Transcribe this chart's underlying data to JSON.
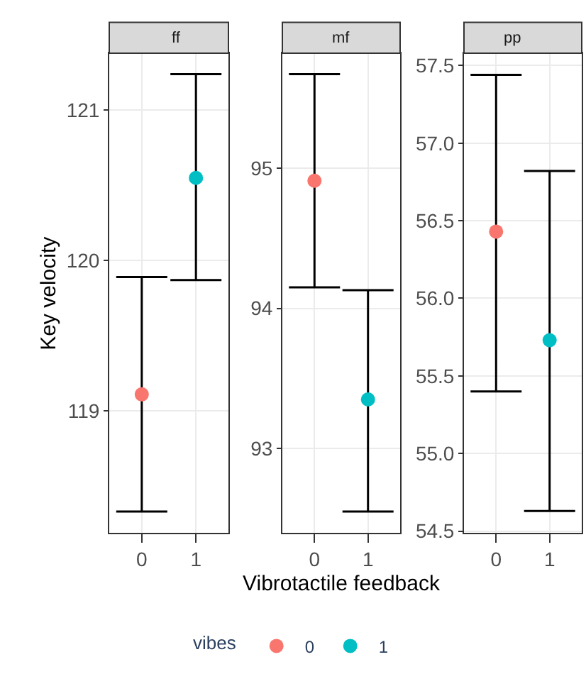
{
  "chart_data": [
    {
      "type": "scatter",
      "title": "ff",
      "ylabel": "Key velocity",
      "legend_title": "vibes",
      "legend": "bottom",
      "categories": [
        "0",
        "1"
      ],
      "ylim": [
        118.19,
        121.38
      ],
      "yticks": [
        119,
        120,
        121
      ],
      "grid": true,
      "marker": "circle",
      "series": [
        {
          "name": "0",
          "color": "#f8766d",
          "values": [
            119.11,
            null
          ],
          "errors": [
            [
              118.33,
              119.89
            ],
            null
          ]
        },
        {
          "name": "1",
          "color": "#00bfc4",
          "values": [
            null,
            120.55
          ],
          "errors": [
            null,
            [
              119.87,
              121.24
            ]
          ]
        }
      ]
    },
    {
      "type": "scatter",
      "title": "mf",
      "xlabel": "Vibrotactile feedback",
      "categories": [
        "0",
        "1"
      ],
      "ylim": [
        92.4,
        95.82
      ],
      "yticks": [
        93,
        94,
        95
      ],
      "grid": true,
      "marker": "circle",
      "series": [
        {
          "color": "#f8766d",
          "values": [
            94.91,
            null
          ],
          "errors": [
            [
              94.15,
              95.67
            ],
            null
          ]
        },
        {
          "color": "#00bfc4",
          "values": [
            null,
            93.35
          ],
          "errors": [
            null,
            [
              92.55,
              94.13
            ]
          ]
        }
      ]
    },
    {
      "type": "scatter",
      "title": "pp",
      "categories": [
        "0",
        "1"
      ],
      "ylim": [
        54.49,
        57.58
      ],
      "yticks": [
        {
          "value": 54.5,
          "label": "54.5"
        },
        {
          "value": 55,
          "label": "55.0"
        },
        {
          "value": 55.5,
          "label": "55.5"
        },
        {
          "value": 56,
          "label": "56.0"
        },
        {
          "value": 56.5,
          "label": "56.5"
        },
        {
          "value": 57,
          "label": "57.0"
        },
        {
          "value": 57.5,
          "label": "57.5"
        }
      ],
      "grid": true,
      "marker": "circle",
      "series": [
        {
          "color": "#f8766d",
          "values": [
            56.43,
            null
          ],
          "errors": [
            [
              55.4,
              57.44
            ],
            null
          ]
        },
        {
          "color": "#00bfc4",
          "values": [
            null,
            55.73
          ],
          "errors": [
            null,
            [
              54.63,
              56.82
            ]
          ]
        }
      ]
    }
  ]
}
